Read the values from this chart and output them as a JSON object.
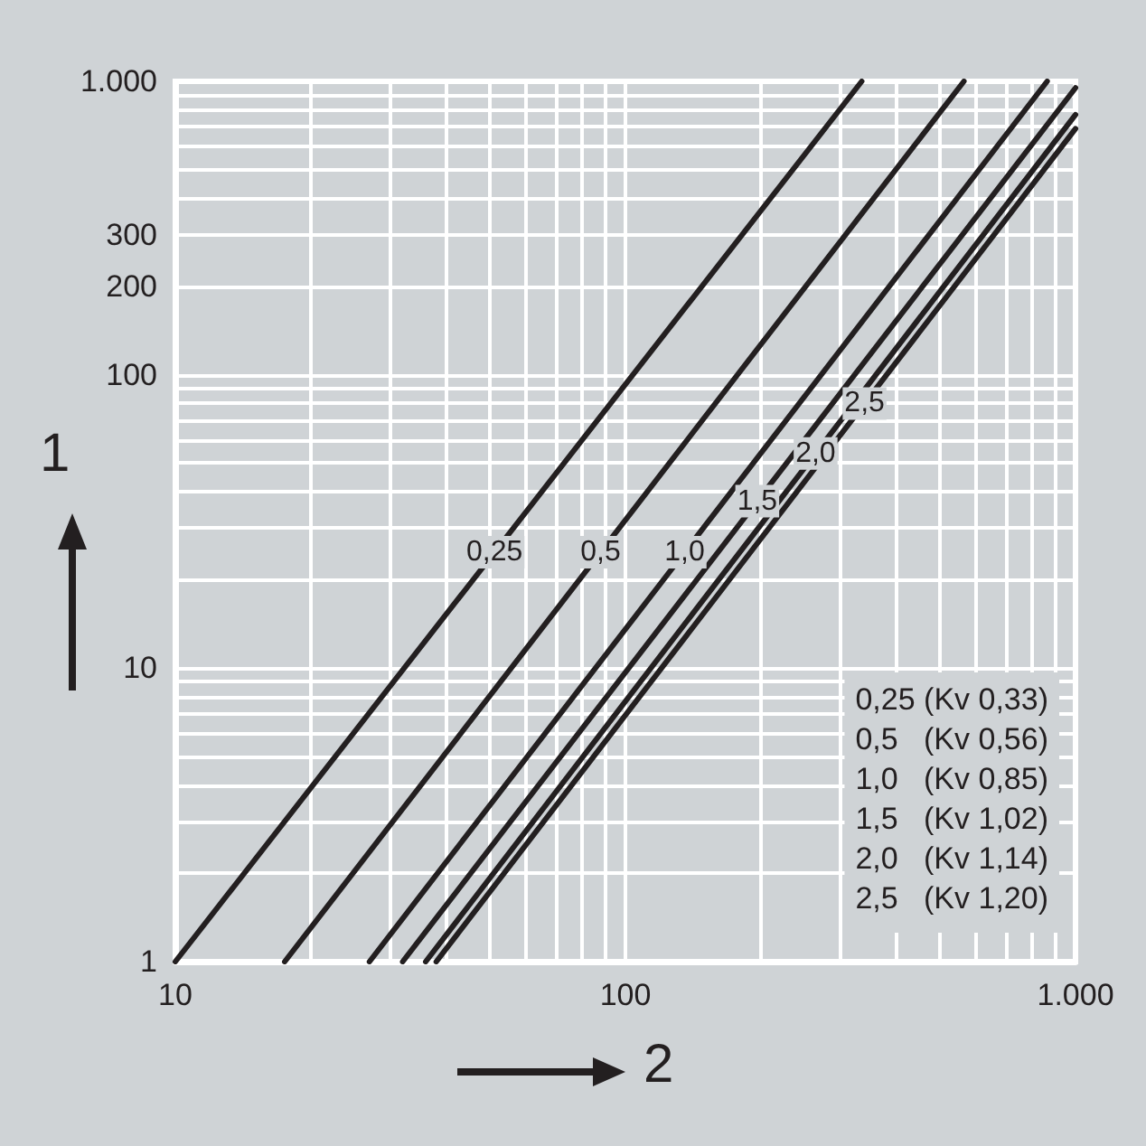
{
  "chart_data": {
    "type": "line",
    "xlabel": "2",
    "ylabel": "1",
    "series": [
      {
        "name": "0,25",
        "color": "#231f20",
        "x": [
          10,
          335
        ],
        "values": [
          1,
          1000
        ]
      },
      {
        "name": "0,5",
        "color": "#231f20",
        "x": [
          17.5,
          565
        ],
        "values": [
          1,
          1000
        ]
      },
      {
        "name": "1,0",
        "color": "#231f20",
        "x": [
          27,
          865
        ],
        "values": [
          1,
          1000
        ]
      },
      {
        "name": "1,5",
        "color": "#231f20",
        "x": [
          32,
          1000
        ],
        "values": [
          1,
          950
        ]
      },
      {
        "name": "2,0",
        "color": "#231f20",
        "x": [
          36,
          1000
        ],
        "values": [
          1,
          770
        ]
      },
      {
        "name": "2,5",
        "color": "#231f20",
        "x": [
          38,
          1000
        ],
        "values": [
          1,
          690
        ]
      }
    ],
    "annotations": [
      "0,25 (Kv 0,33)",
      "0,5   (Kv 0,56)",
      "1,0   (Kv 0,85)",
      "1,5   (Kv 1,02)",
      "2,0   (Kv 1,14)",
      "2,5   (Kv 1,20)"
    ],
    "log": "xy",
    "xlim": [
      10,
      1000
    ],
    "ylim": [
      1,
      1000
    ],
    "xticks": [
      10,
      100,
      {
        "value": 1000,
        "label": "1.000"
      }
    ],
    "yticks": [
      1,
      10,
      100,
      200,
      300,
      {
        "value": 1000,
        "label": "1.000"
      }
    ],
    "grid": true,
    "legend": false,
    "marker": "none",
    "line_style": "solid"
  }
}
